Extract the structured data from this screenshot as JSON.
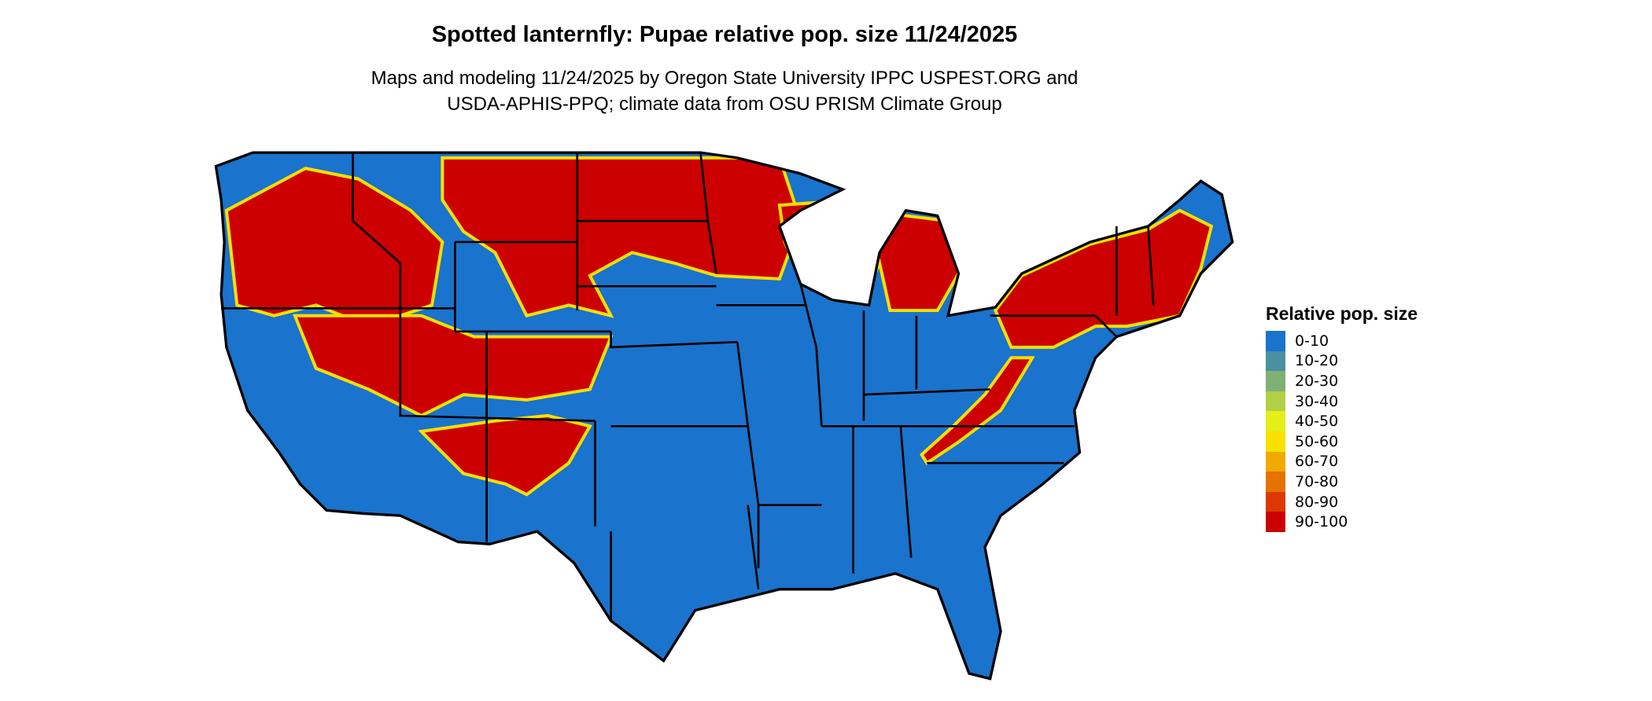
{
  "title": "Spotted lanternfly: Pupae relative pop. size 11/24/2025",
  "subtitle_lines": [
    "Maps and modeling 11/24/2025 by Oregon State University IPPC USPEST.ORG and",
    "USDA-APHIS-PPQ; climate data from OSU PRISM Climate Group"
  ],
  "legend": {
    "title": "Relative pop. size",
    "items": [
      {
        "label": "0-10",
        "color": "#1a73cc"
      },
      {
        "label": "10-20",
        "color": "#4a90a0"
      },
      {
        "label": "20-30",
        "color": "#7fb074"
      },
      {
        "label": "30-40",
        "color": "#b2d045"
      },
      {
        "label": "40-50",
        "color": "#e4ee18"
      },
      {
        "label": "50-60",
        "color": "#f8e000"
      },
      {
        "label": "60-70",
        "color": "#f0aa00"
      },
      {
        "label": "70-80",
        "color": "#e47300"
      },
      {
        "label": "80-90",
        "color": "#dc3800"
      },
      {
        "label": "90-100",
        "color": "#cc0000"
      }
    ]
  }
}
